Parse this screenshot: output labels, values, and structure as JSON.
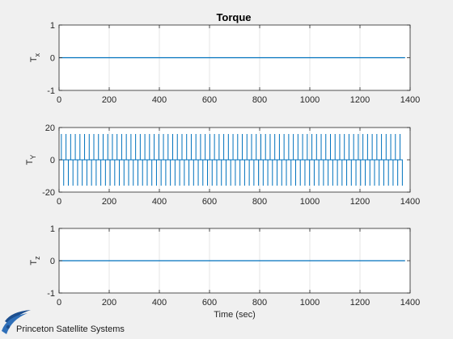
{
  "figure": {
    "title": "Torque",
    "logo_text": "Princeton Satellite Systems",
    "colors": {
      "line": "#0072bd",
      "axes_bg": "#ffffff",
      "figure_bg": "#f0f0f0",
      "grid": "#e6e6e6",
      "axis": "#262626"
    }
  },
  "chart_data": [
    {
      "type": "line",
      "title": "Torque",
      "xlabel": "",
      "ylabel_base": "T",
      "ylabel_sub": "x",
      "xlim": [
        0,
        1400
      ],
      "ylim": [
        -1,
        1
      ],
      "xticks": [
        0,
        200,
        400,
        600,
        800,
        1000,
        1200,
        1400
      ],
      "yticks": [
        -1,
        0,
        1
      ],
      "grid": "x-only",
      "series": [
        {
          "x": [
            0,
            1380
          ],
          "y": [
            0,
            0
          ]
        }
      ]
    },
    {
      "type": "line",
      "title": "",
      "xlabel": "",
      "ylabel_base": "T",
      "ylabel_sub": "Y",
      "xlim": [
        0,
        1400
      ],
      "ylim": [
        -20,
        20
      ],
      "xticks": [
        0,
        200,
        400,
        600,
        800,
        1000,
        1200,
        1400
      ],
      "yticks": [
        -20,
        0,
        20
      ],
      "grid": "x-only",
      "series": [
        {
          "pattern": "square-wave spikes",
          "x_start": 0,
          "x_end": 1370,
          "period": 18.5,
          "amplitude_pos": 16,
          "amplitude_neg": -16
        }
      ]
    },
    {
      "type": "line",
      "title": "",
      "xlabel": "Time (sec)",
      "ylabel_base": "T",
      "ylabel_sub": "z",
      "xlim": [
        0,
        1400
      ],
      "ylim": [
        -1,
        1
      ],
      "xticks": [
        0,
        200,
        400,
        600,
        800,
        1000,
        1200,
        1400
      ],
      "yticks": [
        -1,
        0,
        1
      ],
      "grid": "x-only",
      "series": [
        {
          "x": [
            0,
            1380
          ],
          "y": [
            0,
            0
          ]
        }
      ]
    }
  ]
}
